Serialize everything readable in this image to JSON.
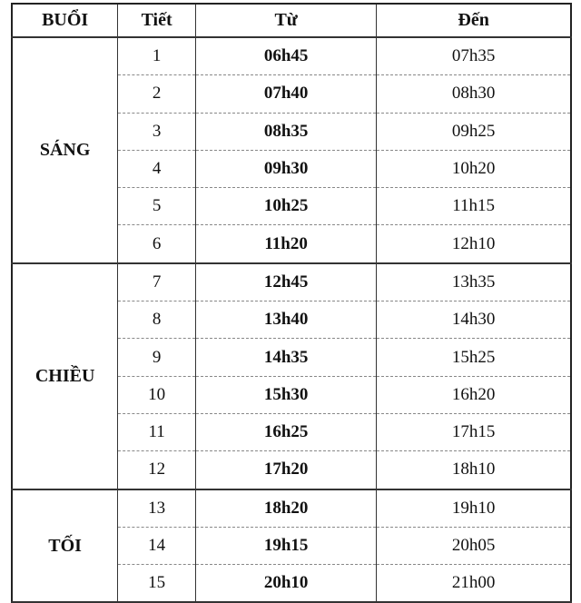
{
  "headers": [
    "BUỔI",
    "Tiết",
    "Từ",
    "Đến"
  ],
  "sessions": [
    {
      "name": "SÁNG",
      "periods": [
        {
          "period": "1",
          "from": "06h45",
          "to": "07h35"
        },
        {
          "period": "2",
          "from": "07h40",
          "to": "08h30"
        },
        {
          "period": "3",
          "from": "08h35",
          "to": "09h25"
        },
        {
          "period": "4",
          "from": "09h30",
          "to": "10h20"
        },
        {
          "period": "5",
          "from": "10h25",
          "to": "11h15"
        },
        {
          "period": "6",
          "from": "11h20",
          "to": "12h10"
        }
      ]
    },
    {
      "name": "CHIỀU",
      "periods": [
        {
          "period": "7",
          "from": "12h45",
          "to": "13h35"
        },
        {
          "period": "8",
          "from": "13h40",
          "to": "14h30"
        },
        {
          "period": "9",
          "from": "14h35",
          "to": "15h25"
        },
        {
          "period": "10",
          "from": "15h30",
          "to": "16h20"
        },
        {
          "period": "11",
          "from": "16h25",
          "to": "17h15"
        },
        {
          "period": "12",
          "from": "17h20",
          "to": "18h10"
        }
      ]
    },
    {
      "name": "TỐI",
      "periods": [
        {
          "period": "13",
          "from": "18h20",
          "to": "19h10"
        },
        {
          "period": "14",
          "from": "19h15",
          "to": "20h05"
        },
        {
          "period": "15",
          "from": "20h10",
          "to": "21h00"
        }
      ]
    }
  ]
}
